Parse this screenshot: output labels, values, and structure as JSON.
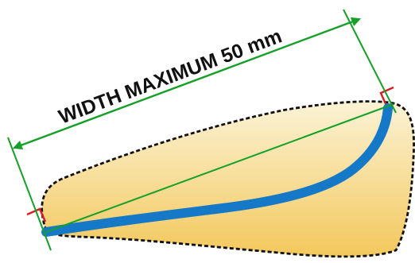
{
  "diagram": {
    "dimension_label": "WIDTH MAXIMUM 50 mm",
    "colors": {
      "shape_fill_top": "#fbf3d6",
      "shape_fill_bottom": "#f3c85c",
      "outline": "#111111",
      "curve": "#1679c8",
      "measure_line": "#16a02a",
      "corner_mark": "#d81e1e",
      "label": "#111111"
    }
  }
}
